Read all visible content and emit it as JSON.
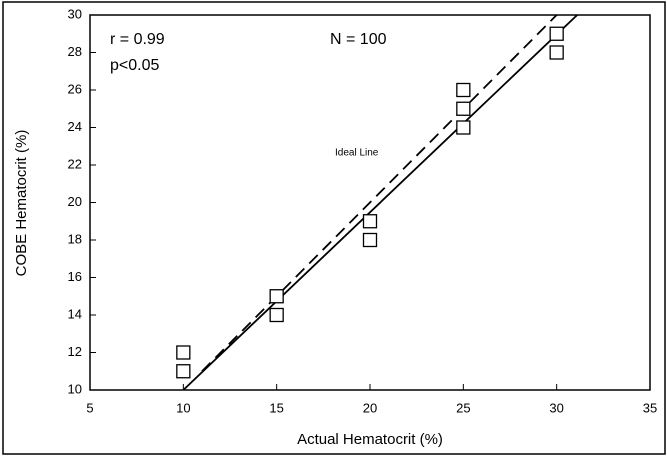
{
  "chart_data": {
    "type": "scatter",
    "x_label": "Actual Hematocrit (%)",
    "y_label": "COBE Hematocrit (%)",
    "annotations": [
      "r = 0.99",
      "p<0.05",
      "N = 100",
      "Ideal Line"
    ],
    "x": [
      10,
      10,
      15,
      15,
      20,
      20,
      25,
      25,
      25,
      30,
      30
    ],
    "values": [
      12,
      11,
      15,
      14,
      19,
      18,
      26,
      25,
      24,
      29,
      28
    ],
    "marker_color": "#000000",
    "lines": [
      {
        "style": "solid",
        "x": [
          10,
          31.1
        ],
        "y": [
          10,
          30
        ]
      },
      {
        "style": "dashed",
        "x": [
          11,
          30.2
        ],
        "y": [
          11,
          30.2
        ]
      }
    ],
    "xlim": [
      5,
      35
    ],
    "ylim": [
      10,
      30
    ],
    "xticks": [
      5,
      10,
      15,
      20,
      25,
      30,
      35
    ],
    "yticks": [
      10,
      12,
      14,
      16,
      18,
      20,
      22,
      24,
      26,
      28,
      30
    ]
  }
}
